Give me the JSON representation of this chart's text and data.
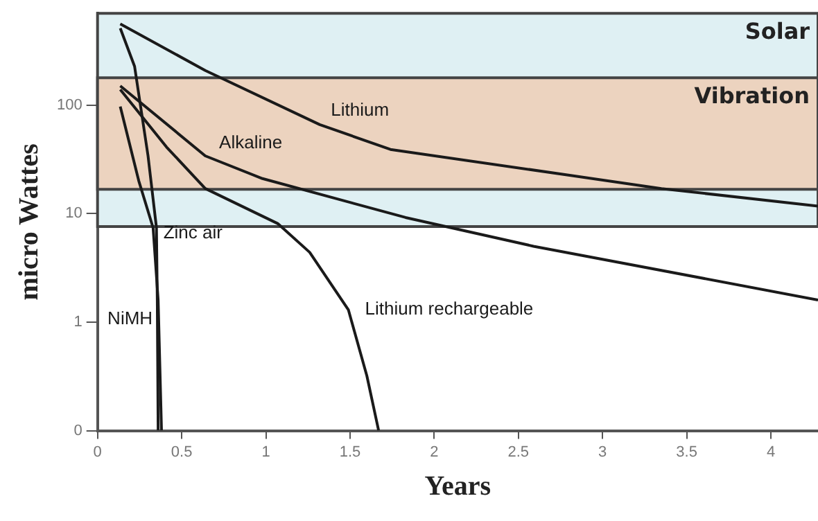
{
  "chart_data": {
    "type": "line",
    "xlabel": "Years",
    "ylabel": "micro Wattes",
    "log": "y",
    "grid": false,
    "legend": false,
    "marker": "none",
    "line_style": "solid",
    "xlim": [
      0,
      4.28
    ],
    "xticks": [
      0,
      0.5,
      1,
      1.5,
      2,
      2.5,
      3,
      3.5,
      4
    ],
    "ylim": [
      0.1,
      700
    ],
    "yticks": [
      {
        "value": 0.1,
        "label": "0"
      },
      1,
      10,
      100
    ],
    "bands": [
      {
        "axis": "y",
        "from": 7.6,
        "to": 700,
        "label": "Solar",
        "color": "#dff0f3"
      },
      {
        "axis": "y",
        "from": 16.7,
        "to": 178,
        "label": "Vibration",
        "color": "#ecd3bf"
      }
    ],
    "series": [
      {
        "name": "Lithium",
        "color": "#1a1a1a",
        "x": [
          0.135,
          0.64,
          1.32,
          1.74,
          3.35,
          4.28
        ],
        "values": [
          560,
          208,
          66,
          39,
          17,
          11.7
        ]
      },
      {
        "name": "Alkaline",
        "color": "#1a1a1a",
        "x": [
          0.135,
          0.64,
          0.98,
          1.83,
          2.59,
          4.28
        ],
        "values": [
          150,
          34,
          21,
          9.2,
          5,
          1.6
        ]
      },
      {
        "name": "Lithium rechargeable",
        "color": "#1a1a1a",
        "x": [
          0.135,
          0.41,
          0.64,
          1.07,
          1.26,
          1.49,
          1.6,
          1.67
        ],
        "values": [
          139,
          41,
          17,
          8.1,
          4.4,
          1.3,
          0.32,
          0.1
        ]
      },
      {
        "name": "NiMH",
        "color": "#1a1a1a",
        "x": [
          0.135,
          0.245,
          0.33,
          0.36,
          0.38
        ],
        "values": [
          97,
          20,
          7.4,
          1.6,
          0.1
        ]
      },
      {
        "name": "Zinc air",
        "color": "#1a1a1a",
        "x": [
          0.135,
          0.22,
          0.3,
          0.35,
          0.355,
          0.36
        ],
        "values": [
          510,
          227,
          34,
          7.4,
          1.6,
          0.1
        ]
      }
    ]
  }
}
